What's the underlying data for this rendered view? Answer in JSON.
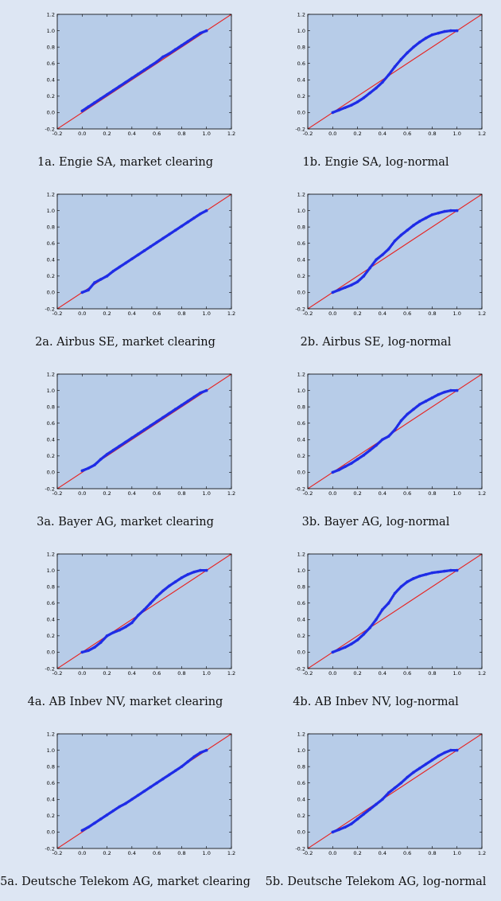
{
  "figure": {
    "background": "#dde6f3",
    "plot_bg": "#b7cce8",
    "reference_color": "#e8201e",
    "points_color": "#1f2de6"
  },
  "chart_data": [
    {
      "type": "scatter",
      "id": "1a",
      "caption": "1a. Engie SA, market clearing",
      "xlim": [
        -0.2,
        1.2
      ],
      "ylim": [
        -0.2,
        1.2
      ],
      "xticks": [
        "-0.2",
        "0.0",
        "0.2",
        "0.4",
        "0.6",
        "0.8",
        "1.0",
        "1.2"
      ],
      "yticks": [
        "-0.2",
        "0.0",
        "0.2",
        "0.4",
        "0.6",
        "0.8",
        "1.0",
        "1.2"
      ],
      "reference_line": [
        [
          -0.2,
          -0.2
        ],
        [
          1.2,
          1.2
        ]
      ],
      "points": [
        [
          0.0,
          0.02
        ],
        [
          0.05,
          0.07
        ],
        [
          0.1,
          0.12
        ],
        [
          0.15,
          0.17
        ],
        [
          0.2,
          0.22
        ],
        [
          0.25,
          0.27
        ],
        [
          0.3,
          0.32
        ],
        [
          0.35,
          0.37
        ],
        [
          0.4,
          0.42
        ],
        [
          0.45,
          0.47
        ],
        [
          0.5,
          0.52
        ],
        [
          0.55,
          0.57
        ],
        [
          0.6,
          0.62
        ],
        [
          0.65,
          0.68
        ],
        [
          0.7,
          0.72
        ],
        [
          0.75,
          0.77
        ],
        [
          0.8,
          0.82
        ],
        [
          0.85,
          0.87
        ],
        [
          0.9,
          0.92
        ],
        [
          0.95,
          0.97
        ],
        [
          1.0,
          1.0
        ]
      ]
    },
    {
      "type": "scatter",
      "id": "1b",
      "caption": "1b. Engie SA, log-normal",
      "xlim": [
        -0.2,
        1.2
      ],
      "ylim": [
        -0.2,
        1.2
      ],
      "xticks": [
        "-0.2",
        "0.0",
        "0.2",
        "0.4",
        "0.6",
        "0.8",
        "1.0",
        "1.2"
      ],
      "yticks": [
        "-0.2",
        "0.0",
        "0.2",
        "0.4",
        "0.6",
        "0.8",
        "1.0",
        "1.2"
      ],
      "reference_line": [
        [
          -0.2,
          -0.2
        ],
        [
          1.2,
          1.2
        ]
      ],
      "points": [
        [
          0.0,
          0.0
        ],
        [
          0.05,
          0.03
        ],
        [
          0.1,
          0.06
        ],
        [
          0.15,
          0.09
        ],
        [
          0.2,
          0.13
        ],
        [
          0.25,
          0.18
        ],
        [
          0.3,
          0.24
        ],
        [
          0.35,
          0.3
        ],
        [
          0.4,
          0.37
        ],
        [
          0.45,
          0.46
        ],
        [
          0.5,
          0.56
        ],
        [
          0.55,
          0.65
        ],
        [
          0.6,
          0.73
        ],
        [
          0.65,
          0.8
        ],
        [
          0.7,
          0.86
        ],
        [
          0.75,
          0.91
        ],
        [
          0.8,
          0.95
        ],
        [
          0.85,
          0.97
        ],
        [
          0.9,
          0.99
        ],
        [
          0.95,
          1.0
        ],
        [
          1.0,
          1.0
        ]
      ]
    },
    {
      "type": "scatter",
      "id": "2a",
      "caption": "2a. Airbus SE, market clearing",
      "xlim": [
        -0.2,
        1.2
      ],
      "ylim": [
        -0.2,
        1.2
      ],
      "xticks": [
        "-0.2",
        "0.0",
        "0.2",
        "0.4",
        "0.6",
        "0.8",
        "1.0",
        "1.2"
      ],
      "yticks": [
        "-0.2",
        "0.0",
        "0.2",
        "0.4",
        "0.6",
        "0.8",
        "1.0",
        "1.2"
      ],
      "reference_line": [
        [
          -0.2,
          -0.2
        ],
        [
          1.2,
          1.2
        ]
      ],
      "points": [
        [
          0.0,
          0.0
        ],
        [
          0.05,
          0.03
        ],
        [
          0.1,
          0.12
        ],
        [
          0.15,
          0.16
        ],
        [
          0.2,
          0.2
        ],
        [
          0.25,
          0.26
        ],
        [
          0.3,
          0.31
        ],
        [
          0.35,
          0.36
        ],
        [
          0.4,
          0.41
        ],
        [
          0.45,
          0.46
        ],
        [
          0.5,
          0.51
        ],
        [
          0.55,
          0.56
        ],
        [
          0.6,
          0.61
        ],
        [
          0.65,
          0.66
        ],
        [
          0.7,
          0.71
        ],
        [
          0.75,
          0.76
        ],
        [
          0.8,
          0.81
        ],
        [
          0.85,
          0.86
        ],
        [
          0.9,
          0.91
        ],
        [
          0.95,
          0.96
        ],
        [
          1.0,
          1.0
        ]
      ]
    },
    {
      "type": "scatter",
      "id": "2b",
      "caption": "2b. Airbus SE, log-normal",
      "xlim": [
        -0.2,
        1.2
      ],
      "ylim": [
        -0.2,
        1.2
      ],
      "xticks": [
        "-0.2",
        "0.0",
        "0.2",
        "0.4",
        "0.6",
        "0.8",
        "1.0",
        "1.2"
      ],
      "yticks": [
        "-0.2",
        "0.0",
        "0.2",
        "0.4",
        "0.6",
        "0.8",
        "1.0",
        "1.2"
      ],
      "reference_line": [
        [
          -0.2,
          -0.2
        ],
        [
          1.2,
          1.2
        ]
      ],
      "points": [
        [
          0.0,
          0.0
        ],
        [
          0.05,
          0.03
        ],
        [
          0.1,
          0.06
        ],
        [
          0.15,
          0.09
        ],
        [
          0.2,
          0.13
        ],
        [
          0.25,
          0.2
        ],
        [
          0.3,
          0.3
        ],
        [
          0.35,
          0.4
        ],
        [
          0.4,
          0.46
        ],
        [
          0.45,
          0.53
        ],
        [
          0.5,
          0.63
        ],
        [
          0.55,
          0.7
        ],
        [
          0.6,
          0.76
        ],
        [
          0.65,
          0.82
        ],
        [
          0.7,
          0.87
        ],
        [
          0.75,
          0.91
        ],
        [
          0.8,
          0.95
        ],
        [
          0.85,
          0.97
        ],
        [
          0.9,
          0.99
        ],
        [
          0.95,
          1.0
        ],
        [
          1.0,
          1.0
        ]
      ]
    },
    {
      "type": "scatter",
      "id": "3a",
      "caption": "3a. Bayer AG, market clearing",
      "xlim": [
        -0.2,
        1.2
      ],
      "ylim": [
        -0.2,
        1.2
      ],
      "xticks": [
        "-0.2",
        "0.0",
        "0.2",
        "0.4",
        "0.6",
        "0.8",
        "1.0",
        "1.2"
      ],
      "yticks": [
        "-0.2",
        "0.0",
        "0.2",
        "0.4",
        "0.6",
        "0.8",
        "1.0",
        "1.2"
      ],
      "reference_line": [
        [
          -0.2,
          -0.2
        ],
        [
          1.2,
          1.2
        ]
      ],
      "points": [
        [
          0.0,
          0.02
        ],
        [
          0.05,
          0.05
        ],
        [
          0.1,
          0.09
        ],
        [
          0.15,
          0.16
        ],
        [
          0.2,
          0.22
        ],
        [
          0.25,
          0.27
        ],
        [
          0.3,
          0.32
        ],
        [
          0.35,
          0.37
        ],
        [
          0.4,
          0.42
        ],
        [
          0.45,
          0.47
        ],
        [
          0.5,
          0.52
        ],
        [
          0.55,
          0.57
        ],
        [
          0.6,
          0.62
        ],
        [
          0.65,
          0.67
        ],
        [
          0.7,
          0.72
        ],
        [
          0.75,
          0.77
        ],
        [
          0.8,
          0.82
        ],
        [
          0.85,
          0.87
        ],
        [
          0.9,
          0.92
        ],
        [
          0.95,
          0.97
        ],
        [
          1.0,
          1.0
        ]
      ]
    },
    {
      "type": "scatter",
      "id": "3b",
      "caption": "3b. Bayer AG, log-normal",
      "xlim": [
        -0.2,
        1.2
      ],
      "ylim": [
        -0.2,
        1.2
      ],
      "xticks": [
        "-0.2",
        "0.0",
        "0.2",
        "0.4",
        "0.6",
        "0.8",
        "1.0",
        "1.2"
      ],
      "yticks": [
        "-0.2",
        "0.0",
        "0.2",
        "0.4",
        "0.6",
        "0.8",
        "1.0",
        "1.2"
      ],
      "reference_line": [
        [
          -0.2,
          -0.2
        ],
        [
          1.2,
          1.2
        ]
      ],
      "points": [
        [
          0.0,
          0.0
        ],
        [
          0.05,
          0.03
        ],
        [
          0.1,
          0.07
        ],
        [
          0.15,
          0.11
        ],
        [
          0.2,
          0.16
        ],
        [
          0.25,
          0.21
        ],
        [
          0.3,
          0.27
        ],
        [
          0.35,
          0.33
        ],
        [
          0.4,
          0.4
        ],
        [
          0.45,
          0.44
        ],
        [
          0.5,
          0.52
        ],
        [
          0.55,
          0.63
        ],
        [
          0.6,
          0.71
        ],
        [
          0.65,
          0.77
        ],
        [
          0.7,
          0.83
        ],
        [
          0.75,
          0.87
        ],
        [
          0.8,
          0.91
        ],
        [
          0.85,
          0.95
        ],
        [
          0.9,
          0.98
        ],
        [
          0.95,
          1.0
        ],
        [
          1.0,
          1.0
        ]
      ]
    },
    {
      "type": "scatter",
      "id": "4a",
      "caption": "4a. AB Inbev NV, market clearing",
      "xlim": [
        -0.2,
        1.2
      ],
      "ylim": [
        -0.2,
        1.2
      ],
      "xticks": [
        "-0.2",
        "0.0",
        "0.2",
        "0.4",
        "0.6",
        "0.8",
        "1.0",
        "1.2"
      ],
      "yticks": [
        "-0.2",
        "0.0",
        "0.2",
        "0.4",
        "0.6",
        "0.8",
        "1.0",
        "1.2"
      ],
      "reference_line": [
        [
          -0.2,
          -0.2
        ],
        [
          1.2,
          1.2
        ]
      ],
      "points": [
        [
          0.0,
          0.0
        ],
        [
          0.05,
          0.02
        ],
        [
          0.1,
          0.06
        ],
        [
          0.15,
          0.12
        ],
        [
          0.2,
          0.2
        ],
        [
          0.25,
          0.24
        ],
        [
          0.3,
          0.27
        ],
        [
          0.35,
          0.31
        ],
        [
          0.4,
          0.36
        ],
        [
          0.45,
          0.45
        ],
        [
          0.5,
          0.52
        ],
        [
          0.55,
          0.6
        ],
        [
          0.6,
          0.68
        ],
        [
          0.65,
          0.75
        ],
        [
          0.7,
          0.81
        ],
        [
          0.75,
          0.86
        ],
        [
          0.8,
          0.91
        ],
        [
          0.85,
          0.95
        ],
        [
          0.9,
          0.98
        ],
        [
          0.95,
          1.0
        ],
        [
          1.0,
          1.0
        ]
      ]
    },
    {
      "type": "scatter",
      "id": "4b",
      "caption": "4b. AB Inbev NV, log-normal",
      "xlim": [
        -0.2,
        1.2
      ],
      "ylim": [
        -0.2,
        1.2
      ],
      "xticks": [
        "-0.2",
        "0.0",
        "0.2",
        "0.4",
        "0.6",
        "0.8",
        "1.0",
        "1.2"
      ],
      "yticks": [
        "-0.2",
        "0.0",
        "0.2",
        "0.4",
        "0.6",
        "0.8",
        "1.0",
        "1.2"
      ],
      "reference_line": [
        [
          -0.2,
          -0.2
        ],
        [
          1.2,
          1.2
        ]
      ],
      "points": [
        [
          0.0,
          0.0
        ],
        [
          0.05,
          0.03
        ],
        [
          0.1,
          0.06
        ],
        [
          0.15,
          0.1
        ],
        [
          0.2,
          0.15
        ],
        [
          0.25,
          0.22
        ],
        [
          0.3,
          0.3
        ],
        [
          0.35,
          0.4
        ],
        [
          0.4,
          0.52
        ],
        [
          0.45,
          0.6
        ],
        [
          0.5,
          0.72
        ],
        [
          0.55,
          0.8
        ],
        [
          0.6,
          0.86
        ],
        [
          0.65,
          0.9
        ],
        [
          0.7,
          0.93
        ],
        [
          0.75,
          0.95
        ],
        [
          0.8,
          0.97
        ],
        [
          0.85,
          0.98
        ],
        [
          0.9,
          0.99
        ],
        [
          0.95,
          1.0
        ],
        [
          1.0,
          1.0
        ]
      ]
    },
    {
      "type": "scatter",
      "id": "5a",
      "caption": "5a. Deutsche Telekom AG, market clearing",
      "xlim": [
        -0.2,
        1.2
      ],
      "ylim": [
        -0.2,
        1.2
      ],
      "xticks": [
        "-0.2",
        "0.0",
        "0.2",
        "0.4",
        "0.6",
        "0.8",
        "1.0",
        "1.2"
      ],
      "yticks": [
        "-0.2",
        "0.0",
        "0.2",
        "0.4",
        "0.6",
        "0.8",
        "1.0",
        "1.2"
      ],
      "reference_line": [
        [
          -0.2,
          -0.2
        ],
        [
          1.2,
          1.2
        ]
      ],
      "points": [
        [
          0.0,
          0.02
        ],
        [
          0.05,
          0.06
        ],
        [
          0.1,
          0.11
        ],
        [
          0.15,
          0.16
        ],
        [
          0.2,
          0.21
        ],
        [
          0.25,
          0.26
        ],
        [
          0.3,
          0.31
        ],
        [
          0.35,
          0.35
        ],
        [
          0.4,
          0.4
        ],
        [
          0.45,
          0.45
        ],
        [
          0.5,
          0.5
        ],
        [
          0.55,
          0.55
        ],
        [
          0.6,
          0.6
        ],
        [
          0.65,
          0.65
        ],
        [
          0.7,
          0.7
        ],
        [
          0.75,
          0.75
        ],
        [
          0.8,
          0.8
        ],
        [
          0.85,
          0.86
        ],
        [
          0.9,
          0.92
        ],
        [
          0.95,
          0.97
        ],
        [
          1.0,
          1.0
        ]
      ]
    },
    {
      "type": "scatter",
      "id": "5b",
      "caption": "5b. Deutsche Telekom AG, log-normal",
      "xlim": [
        -0.2,
        1.2
      ],
      "ylim": [
        -0.2,
        1.2
      ],
      "xticks": [
        "-0.2",
        "0.0",
        "0.2",
        "0.4",
        "0.6",
        "0.8",
        "1.0",
        "1.2"
      ],
      "yticks": [
        "-0.2",
        "0.0",
        "0.2",
        "0.4",
        "0.6",
        "0.8",
        "1.0",
        "1.2"
      ],
      "reference_line": [
        [
          -0.2,
          -0.2
        ],
        [
          1.2,
          1.2
        ]
      ],
      "points": [
        [
          0.0,
          0.0
        ],
        [
          0.05,
          0.03
        ],
        [
          0.1,
          0.06
        ],
        [
          0.15,
          0.1
        ],
        [
          0.2,
          0.16
        ],
        [
          0.25,
          0.22
        ],
        [
          0.3,
          0.28
        ],
        [
          0.35,
          0.34
        ],
        [
          0.4,
          0.4
        ],
        [
          0.45,
          0.48
        ],
        [
          0.5,
          0.54
        ],
        [
          0.55,
          0.6
        ],
        [
          0.6,
          0.67
        ],
        [
          0.65,
          0.73
        ],
        [
          0.7,
          0.78
        ],
        [
          0.75,
          0.83
        ],
        [
          0.8,
          0.88
        ],
        [
          0.85,
          0.93
        ],
        [
          0.9,
          0.97
        ],
        [
          0.95,
          1.0
        ],
        [
          1.0,
          1.0
        ]
      ]
    }
  ]
}
